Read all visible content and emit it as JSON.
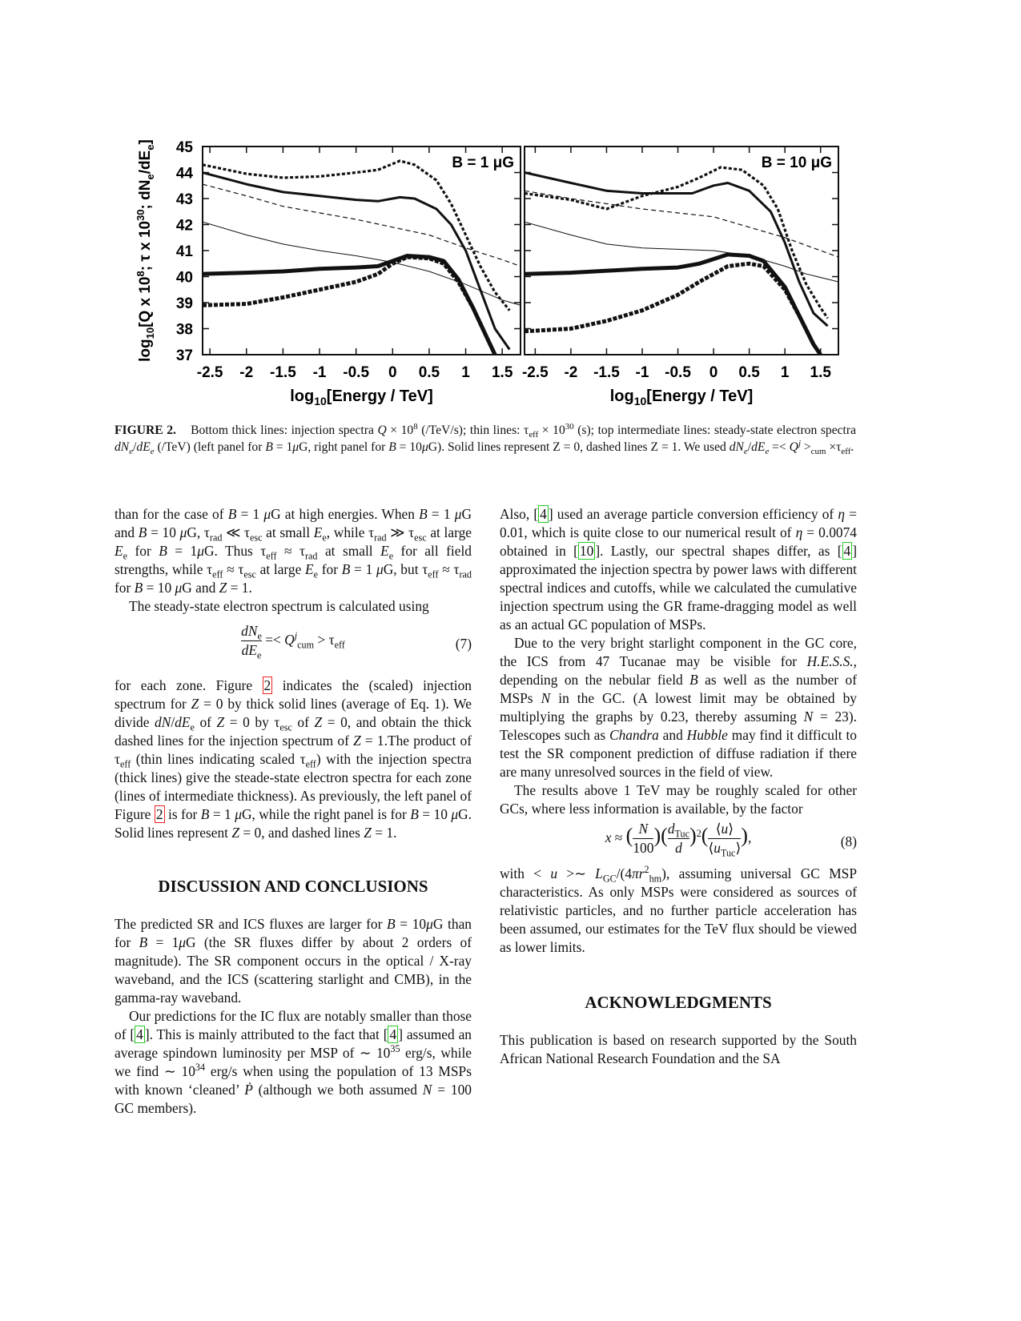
{
  "figure": {
    "label": "FIGURE 2.",
    "caption": "Bottom thick lines: injection spectra <i>Q</i> × 10<sup>8</sup> (/TeV/s); thin lines: τ<sub>eff</sub> × 10<sup>30</sup> (s); top intermediate lines: steady-state electron spectra <i>dN<sub>e</sub></i>/<i>dE<sub>e</sub></i> (/TeV) (left panel for <i>B</i> = 1<i>μ</i>G, right panel for <i>B</i> = 10<i>μ</i>G). Solid lines represent Z = 0, dashed lines Z = 1. We used <i>dN<sub>e</sub></i>/<i>dE<sub>e</sub></i> =&lt; <i>Q<sup>j</sup></i> &gt;<sub>cum</sub> ×τ<sub>eff</sub>."
  },
  "chart_data": {
    "type": "line",
    "ylabel": "log10[Q x 10^8; τ x 10^30; dNe/dEe]",
    "xlabel": "log10[Energy / TeV]",
    "ylim": [
      37,
      45
    ],
    "yticks": [
      "37",
      "38",
      "39",
      "40",
      "41",
      "42",
      "43",
      "44",
      "45"
    ],
    "xticks": [
      "-2.5",
      "-2",
      "-1.5",
      "-1",
      "-0.5",
      "0",
      "0.5",
      "1",
      "1.5"
    ],
    "panels": [
      {
        "title": "B = 1 μG",
        "xlim": [
          -2.6,
          1.75
        ],
        "series": [
          {
            "name": "Q Z=0",
            "style": "thick-solid",
            "points": [
              [
                -2.6,
                40.1
              ],
              [
                -2,
                40.15
              ],
              [
                -1.5,
                40.2
              ],
              [
                -1,
                40.3
              ],
              [
                -0.5,
                40.35
              ],
              [
                -0.2,
                40.4
              ],
              [
                0,
                40.6
              ],
              [
                0.2,
                40.8
              ],
              [
                0.5,
                40.75
              ],
              [
                0.7,
                40.6
              ],
              [
                0.9,
                39.9
              ],
              [
                1.1,
                38.8
              ],
              [
                1.3,
                37.6
              ],
              [
                1.4,
                37.0
              ]
            ]
          },
          {
            "name": "Q Z=1",
            "style": "thick-dashed",
            "points": [
              [
                -2.6,
                38.9
              ],
              [
                -2,
                38.95
              ],
              [
                -1.5,
                39.2
              ],
              [
                -1,
                39.5
              ],
              [
                -0.5,
                39.8
              ],
              [
                -0.2,
                40.1
              ],
              [
                0,
                40.5
              ],
              [
                0.2,
                40.75
              ],
              [
                0.5,
                40.7
              ],
              [
                0.7,
                40.5
              ],
              [
                0.9,
                39.8
              ],
              [
                1.1,
                38.8
              ],
              [
                1.3,
                37.6
              ],
              [
                1.4,
                37.0
              ]
            ]
          },
          {
            "name": "tau Z=0",
            "style": "thin-solid",
            "points": [
              [
                -2.6,
                42.1
              ],
              [
                -2,
                41.6
              ],
              [
                -1.5,
                41.25
              ],
              [
                -1,
                41.0
              ],
              [
                -0.5,
                40.8
              ],
              [
                0,
                40.55
              ],
              [
                0.5,
                40.2
              ],
              [
                1,
                39.7
              ],
              [
                1.5,
                39.1
              ],
              [
                1.75,
                38.9
              ]
            ]
          },
          {
            "name": "tau Z=1",
            "style": "thin-dashed",
            "points": [
              [
                -2.6,
                43.55
              ],
              [
                -2,
                43.1
              ],
              [
                -1.5,
                42.7
              ],
              [
                -1,
                42.45
              ],
              [
                -0.5,
                42.2
              ],
              [
                0,
                41.9
              ],
              [
                0.5,
                41.6
              ],
              [
                1,
                41.1
              ],
              [
                1.5,
                40.65
              ],
              [
                1.75,
                40.4
              ]
            ]
          },
          {
            "name": "dNe/dEe Z=0",
            "style": "mid-solid",
            "points": [
              [
                -2.6,
                44.0
              ],
              [
                -2,
                43.55
              ],
              [
                -1.5,
                43.25
              ],
              [
                -1,
                43.1
              ],
              [
                -0.5,
                42.95
              ],
              [
                -0.2,
                42.9
              ],
              [
                0.1,
                43.05
              ],
              [
                0.3,
                43.0
              ],
              [
                0.6,
                42.6
              ],
              [
                0.8,
                42
              ],
              [
                1,
                41
              ],
              [
                1.2,
                39.5
              ],
              [
                1.4,
                38
              ],
              [
                1.6,
                37.2
              ]
            ]
          },
          {
            "name": "dNe/dEe Z=1",
            "style": "mid-dashed",
            "points": [
              [
                -2.6,
                44.3
              ],
              [
                -2,
                43.95
              ],
              [
                -1.5,
                43.8
              ],
              [
                -1,
                43.85
              ],
              [
                -0.5,
                44.0
              ],
              [
                -0.2,
                44.1
              ],
              [
                0.1,
                44.45
              ],
              [
                0.3,
                44.3
              ],
              [
                0.6,
                43.7
              ],
              [
                0.8,
                42.8
              ],
              [
                1,
                41.6
              ],
              [
                1.2,
                40.4
              ],
              [
                1.4,
                39.4
              ],
              [
                1.6,
                38.7
              ]
            ]
          }
        ]
      },
      {
        "title": "B = 10 μG",
        "xlim": [
          -2.65,
          1.75
        ],
        "series": [
          {
            "name": "Q Z=0",
            "style": "thick-solid",
            "points": [
              [
                -2.65,
                40.1
              ],
              [
                -2,
                40.15
              ],
              [
                -1,
                40.3
              ],
              [
                -0.5,
                40.35
              ],
              [
                -0.2,
                40.5
              ],
              [
                0.2,
                40.85
              ],
              [
                0.5,
                40.8
              ],
              [
                0.7,
                40.6
              ],
              [
                1,
                39.6
              ],
              [
                1.2,
                38.5
              ],
              [
                1.4,
                37.4
              ],
              [
                1.5,
                37
              ]
            ]
          },
          {
            "name": "Q Z=1",
            "style": "thick-dashed",
            "points": [
              [
                -2.65,
                37.9
              ],
              [
                -2,
                38.0
              ],
              [
                -1.5,
                38.3
              ],
              [
                -1,
                38.7
              ],
              [
                -0.5,
                39.3
              ],
              [
                -0.2,
                39.8
              ],
              [
                0.2,
                40.4
              ],
              [
                0.5,
                40.5
              ],
              [
                0.7,
                40.4
              ],
              [
                1,
                39.5
              ],
              [
                1.2,
                38.5
              ],
              [
                1.4,
                37.4
              ],
              [
                1.5,
                37
              ]
            ]
          },
          {
            "name": "tau Z=0",
            "style": "thin-solid",
            "points": [
              [
                -2.65,
                42.1
              ],
              [
                -2,
                41.6
              ],
              [
                -1.5,
                41.25
              ],
              [
                -1,
                41.1
              ],
              [
                -0.5,
                41.05
              ],
              [
                0,
                41.0
              ],
              [
                0.5,
                40.8
              ],
              [
                1,
                40.4
              ],
              [
                1.3,
                40.1
              ],
              [
                1.75,
                39.8
              ]
            ]
          },
          {
            "name": "tau Z=1",
            "style": "thin-dashed",
            "points": [
              [
                -2.65,
                43.3
              ],
              [
                -2,
                43.0
              ],
              [
                -1.5,
                42.8
              ],
              [
                -1,
                42.6
              ],
              [
                -0.5,
                42.45
              ],
              [
                0,
                42.3
              ],
              [
                0.5,
                41.9
              ],
              [
                1,
                41.5
              ],
              [
                1.75,
                40.75
              ]
            ]
          },
          {
            "name": "dNe/dEe Z=0",
            "style": "mid-solid",
            "points": [
              [
                -2.65,
                44.0
              ],
              [
                -2,
                43.6
              ],
              [
                -1.5,
                43.3
              ],
              [
                -1,
                43.2
              ],
              [
                -0.3,
                43.2
              ],
              [
                0,
                43.5
              ],
              [
                0.2,
                43.6
              ],
              [
                0.5,
                43.3
              ],
              [
                0.8,
                42.5
              ],
              [
                1,
                41.3
              ],
              [
                1.2,
                39.8
              ],
              [
                1.4,
                38.6
              ],
              [
                1.6,
                38.1
              ]
            ]
          },
          {
            "name": "dNe/dEe Z=1",
            "style": "mid-dashed",
            "points": [
              [
                -2.65,
                43.2
              ],
              [
                -2,
                42.95
              ],
              [
                -1.5,
                42.6
              ],
              [
                -1,
                43.1
              ],
              [
                -0.5,
                43.45
              ],
              [
                -0.2,
                43.8
              ],
              [
                0.1,
                44.2
              ],
              [
                0.4,
                44.1
              ],
              [
                0.7,
                43.5
              ],
              [
                0.9,
                42.6
              ],
              [
                1.1,
                41.0
              ],
              [
                1.3,
                39.7
              ],
              [
                1.5,
                38.8
              ],
              [
                1.6,
                38.4
              ]
            ]
          }
        ]
      }
    ]
  },
  "left": {
    "p1": "than for the case of <i>B</i> = 1 <i>μ</i>G at high energies. When <i>B</i> = 1 <i>μ</i>G and <i>B</i> = 10 <i>μ</i>G, τ<sub>rad</sub> ≪ τ<sub>esc</sub> at small <i>E</i><sub>e</sub>, while τ<sub>rad</sub> ≫ τ<sub>esc</sub> at large <i>E</i><sub>e</sub> for <i>B</i> = 1<i>μ</i>G. Thus τ<sub>eff</sub> ≈ τ<sub>rad</sub> at small <i>E</i><sub>e</sub> for all field strengths, while τ<sub>eff</sub> ≈ τ<sub>esc</sub> at large <i>E</i><sub>e</sub> for <i>B</i> = 1 <i>μ</i>G, but τ<sub>eff</sub> ≈ τ<sub>rad</sub> for <i>B</i> = 10 <i>μ</i>G and <i>Z</i> = 1.",
    "p2": "The steady-state electron spectrum is calculated using",
    "eq7": "<span style=\"display:inline-block;vertical-align:middle;text-align:center\"><span style=\"display:block;border-bottom:1px solid #111\"><i>dN</i><sub>e</sub></span><span style=\"display:block\"><i>dE</i><sub>e</sub></span></span> =&lt; <i>Q</i><sup><i>j</i></sup><sub>cum</sub> &gt; τ<sub>eff</sub>",
    "eq7_num": "(7)",
    "p3": "for each zone. Figure <span class=\"fref\">2</span> indicates the (scaled) injection spectrum for <i>Z</i> = 0 by thick solid lines (average of Eq. 1). We divide <i>dN</i>/<i>dE</i><sub>e</sub> of <i>Z</i> = 0 by τ<sub>esc</sub> of <i>Z</i> = 0, and obtain the thick dashed lines for the injection spectrum of <i>Z</i> = 1.The product of τ<sub>eff</sub> (thin lines indicating scaled τ<sub>eff</sub>) with the injection spectra (thick lines) give the steade-state electron spectra for each zone (lines of intermediate thickness). As previously, the left panel of Figure <span class=\"fref\">2</span> is for <i>B</i> = 1 <i>μ</i>G, while the right panel is for <i>B</i> = 10 <i>μ</i>G. Solid lines represent <i>Z</i> = 0, and dashed lines <i>Z</i> = 1.",
    "h_disc": "DISCUSSION AND CONCLUSIONS",
    "p4": "The predicted SR and ICS fluxes are larger for <i>B</i> = 10<i>μ</i>G than for <i>B</i> = 1<i>μ</i>G (the SR fluxes differ by about 2 orders of magnitude). The SR component occurs in the optical / X-ray waveband, and the ICS (scattering starlight and CMB), in the gamma-ray waveband.",
    "p5": "Our predictions for the IC flux are notably smaller than those of [<span class=\"cite\">4</span>]. This is mainly attributed to the fact that [<span class=\"cite\">4</span>] assumed an average spindown luminosity per MSP of ∼ 10<sup>35</sup> erg/s, while we find ∼ 10<sup>34</sup> erg/s when using the population of 13 MSPs with known ‘cleaned’ <i>Ṗ</i> (although we both assumed <i>N</i> = 100 GC members)."
  },
  "right": {
    "p1": "Also, [<span class=\"cite\">4</span>] used an average particle conversion efficiency of <i>η</i> = 0.01, which is quite close to our numerical result of <i>η</i> = 0.0074 obtained in [<span class=\"cite\">10</span>]. Lastly, our spectral shapes differ, as [<span class=\"cite\">4</span>] approximated the injection spectra by power laws with different spectral indices and cutoffs, while we calculated the cumulative injection spectrum using the GR frame-dragging model as well as an actual GC population of MSPs.",
    "p2": "Due to the very bright starlight component in the GC core, the ICS from 47 Tucanae may be visible for <i>H.E.S.S.</i>, depending on the nebular field <i>B</i> as well as the number of MSPs <i>N</i> in the GC. (A lowest limit may be obtained by multiplying the graphs by 0.23, thereby assuming <i>N</i> = 23). Telescopes such as <i>Chandra</i> and <i>Hubble</i> may find it difficult to test the SR component prediction of diffuse radiation if there are many unresolved sources in the field of view.",
    "p3": "The results above 1 TeV may be roughly scaled for other GCs, where less information is available, by the factor",
    "eq8": "<i>x</i> ≈ <span style=\"font-size:150%\">(</span><span style=\"display:inline-block;vertical-align:middle;text-align:center\"><span style=\"display:block;border-bottom:1px solid #111\"><i>N</i></span><span style=\"display:block\">100</span></span><span style=\"font-size:150%\">)</span><span style=\"font-size:150%\">(</span><span style=\"display:inline-block;vertical-align:middle;text-align:center\"><span style=\"display:block;border-bottom:1px solid #111\"><i>d</i><sub>Tuc</sub></span><span style=\"display:block\"><i>d</i></span></span><span style=\"font-size:150%\">)</span><sup>2</sup><span style=\"font-size:150%\">(</span><span style=\"display:inline-block;vertical-align:middle;text-align:center\"><span style=\"display:block;border-bottom:1px solid #111\">⟨<i>u</i>⟩</span><span style=\"display:block\">⟨<i>u</i><sub>Tuc</sub>⟩</span></span><span style=\"font-size:150%\">)</span>,",
    "eq8_num": "(8)",
    "p4": "with &lt; <i>u</i> &gt;∼ <i>L</i><sub>GC</sub>/(4<i>πr</i><sup>2</sup><sub>hm</sub>), assuming universal GC MSP characteristics. As only MSPs were considered as sources of relativistic particles, and no further particle acceleration has been assumed, our estimates for the TeV flux should be viewed as lower limits.",
    "h_ack": "ACKNOWLEDGMENTS",
    "p5": "This publication is based on research supported by the South African National Research Foundation and the SA"
  }
}
